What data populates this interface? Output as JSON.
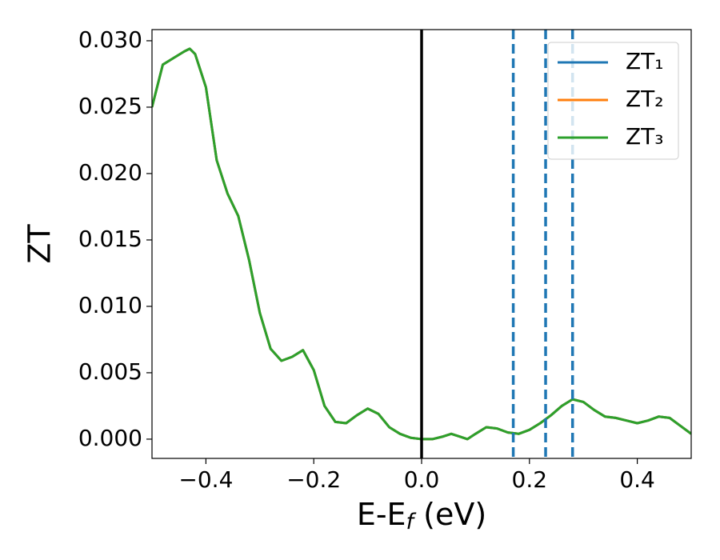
{
  "chart_data": {
    "type": "line",
    "y_label": "ZT",
    "x_label": {
      "main": "E-E",
      "sub": "f",
      "rest": " (eV)"
    },
    "x": [
      -0.5,
      -0.48,
      -0.46,
      -0.44,
      -0.43,
      -0.42,
      -0.4,
      -0.38,
      -0.36,
      -0.34,
      -0.32,
      -0.3,
      -0.28,
      -0.26,
      -0.24,
      -0.22,
      -0.2,
      -0.18,
      -0.16,
      -0.14,
      -0.12,
      -0.1,
      -0.08,
      -0.06,
      -0.04,
      -0.02,
      0,
      0.02,
      0.04,
      0.055,
      0.07,
      0.085,
      0.1,
      0.12,
      0.14,
      0.16,
      0.18,
      0.2,
      0.22,
      0.24,
      0.26,
      0.28,
      0.3,
      0.32,
      0.34,
      0.36,
      0.38,
      0.4,
      0.42,
      0.44,
      0.46,
      0.48,
      0.5
    ],
    "series": [
      {
        "name": "ZT₁",
        "color": "#1f77b4",
        "values": [
          0.025,
          0.0282,
          0.0287,
          0.0292,
          0.0294,
          0.029,
          0.0265,
          0.021,
          0.0185,
          0.0168,
          0.0135,
          0.0095,
          0.0068,
          0.0059,
          0.0062,
          0.0067,
          0.0052,
          0.0025,
          0.0013,
          0.0012,
          0.0018,
          0.0023,
          0.0019,
          0.0009,
          0.0004,
          0.0001,
          0,
          0,
          0.0002,
          0.0004,
          0.0002,
          0,
          0.0004,
          0.0009,
          0.0008,
          0.0005,
          0.0004,
          0.0007,
          0.0012,
          0.0018,
          0.0025,
          0.003,
          0.0028,
          0.0022,
          0.0017,
          0.0016,
          0.0014,
          0.0012,
          0.0014,
          0.0017,
          0.0016,
          0.001,
          0.0004
        ]
      },
      {
        "name": "ZT₂",
        "color": "#ff7f0e",
        "values": [
          0.025,
          0.0282,
          0.0287,
          0.0292,
          0.0294,
          0.029,
          0.0265,
          0.021,
          0.0185,
          0.0168,
          0.0135,
          0.0095,
          0.0068,
          0.0059,
          0.0062,
          0.0067,
          0.0052,
          0.0025,
          0.0013,
          0.0012,
          0.0018,
          0.0023,
          0.0019,
          0.0009,
          0.0004,
          0.0001,
          0,
          0,
          0.0002,
          0.0004,
          0.0002,
          0,
          0.0004,
          0.0009,
          0.0008,
          0.0005,
          0.0004,
          0.0007,
          0.0012,
          0.0018,
          0.0025,
          0.003,
          0.0028,
          0.0022,
          0.0017,
          0.0016,
          0.0014,
          0.0012,
          0.0014,
          0.0017,
          0.0016,
          0.001,
          0.0004
        ]
      },
      {
        "name": "ZT₃",
        "color": "#2ca02c",
        "values": [
          0.025,
          0.0282,
          0.0287,
          0.0292,
          0.0294,
          0.029,
          0.0265,
          0.021,
          0.0185,
          0.0168,
          0.0135,
          0.0095,
          0.0068,
          0.0059,
          0.0062,
          0.0067,
          0.0052,
          0.0025,
          0.0013,
          0.0012,
          0.0018,
          0.0023,
          0.0019,
          0.0009,
          0.0004,
          0.0001,
          0,
          0,
          0.0002,
          0.0004,
          0.0002,
          0,
          0.0004,
          0.0009,
          0.0008,
          0.0005,
          0.0004,
          0.0007,
          0.0012,
          0.0018,
          0.0025,
          0.003,
          0.0028,
          0.0022,
          0.0017,
          0.0016,
          0.0014,
          0.0012,
          0.0014,
          0.0017,
          0.0016,
          0.001,
          0.0004
        ]
      }
    ],
    "vlines": [
      {
        "x": 0,
        "color": "#000000",
        "style": "solid"
      },
      {
        "x": 0.17,
        "color": "#1f77b4",
        "style": "dashed"
      },
      {
        "x": 0.23,
        "color": "#1f77b4",
        "style": "dashed"
      },
      {
        "x": 0.28,
        "color": "#1f77b4",
        "style": "dashed"
      }
    ],
    "xlim": [
      -0.5,
      0.5
    ],
    "ylim": [
      -0.00145,
      0.03084
    ],
    "xticks": [
      {
        "value": -0.4,
        "label": "−0.4"
      },
      {
        "value": -0.2,
        "label": "−0.2"
      },
      {
        "value": 0,
        "label": "0.0"
      },
      0.2,
      0.4
    ],
    "yticks": [
      {
        "value": 0,
        "label": "0.000"
      },
      {
        "value": 0.005,
        "label": "0.005"
      },
      {
        "value": 0.01,
        "label": "0.010"
      },
      {
        "value": 0.015,
        "label": "0.015"
      },
      {
        "value": 0.02,
        "label": "0.020"
      },
      {
        "value": 0.025,
        "label": "0.025"
      },
      {
        "value": 0.03,
        "label": "0.030"
      }
    ],
    "grid": false,
    "legend": "upper right"
  }
}
